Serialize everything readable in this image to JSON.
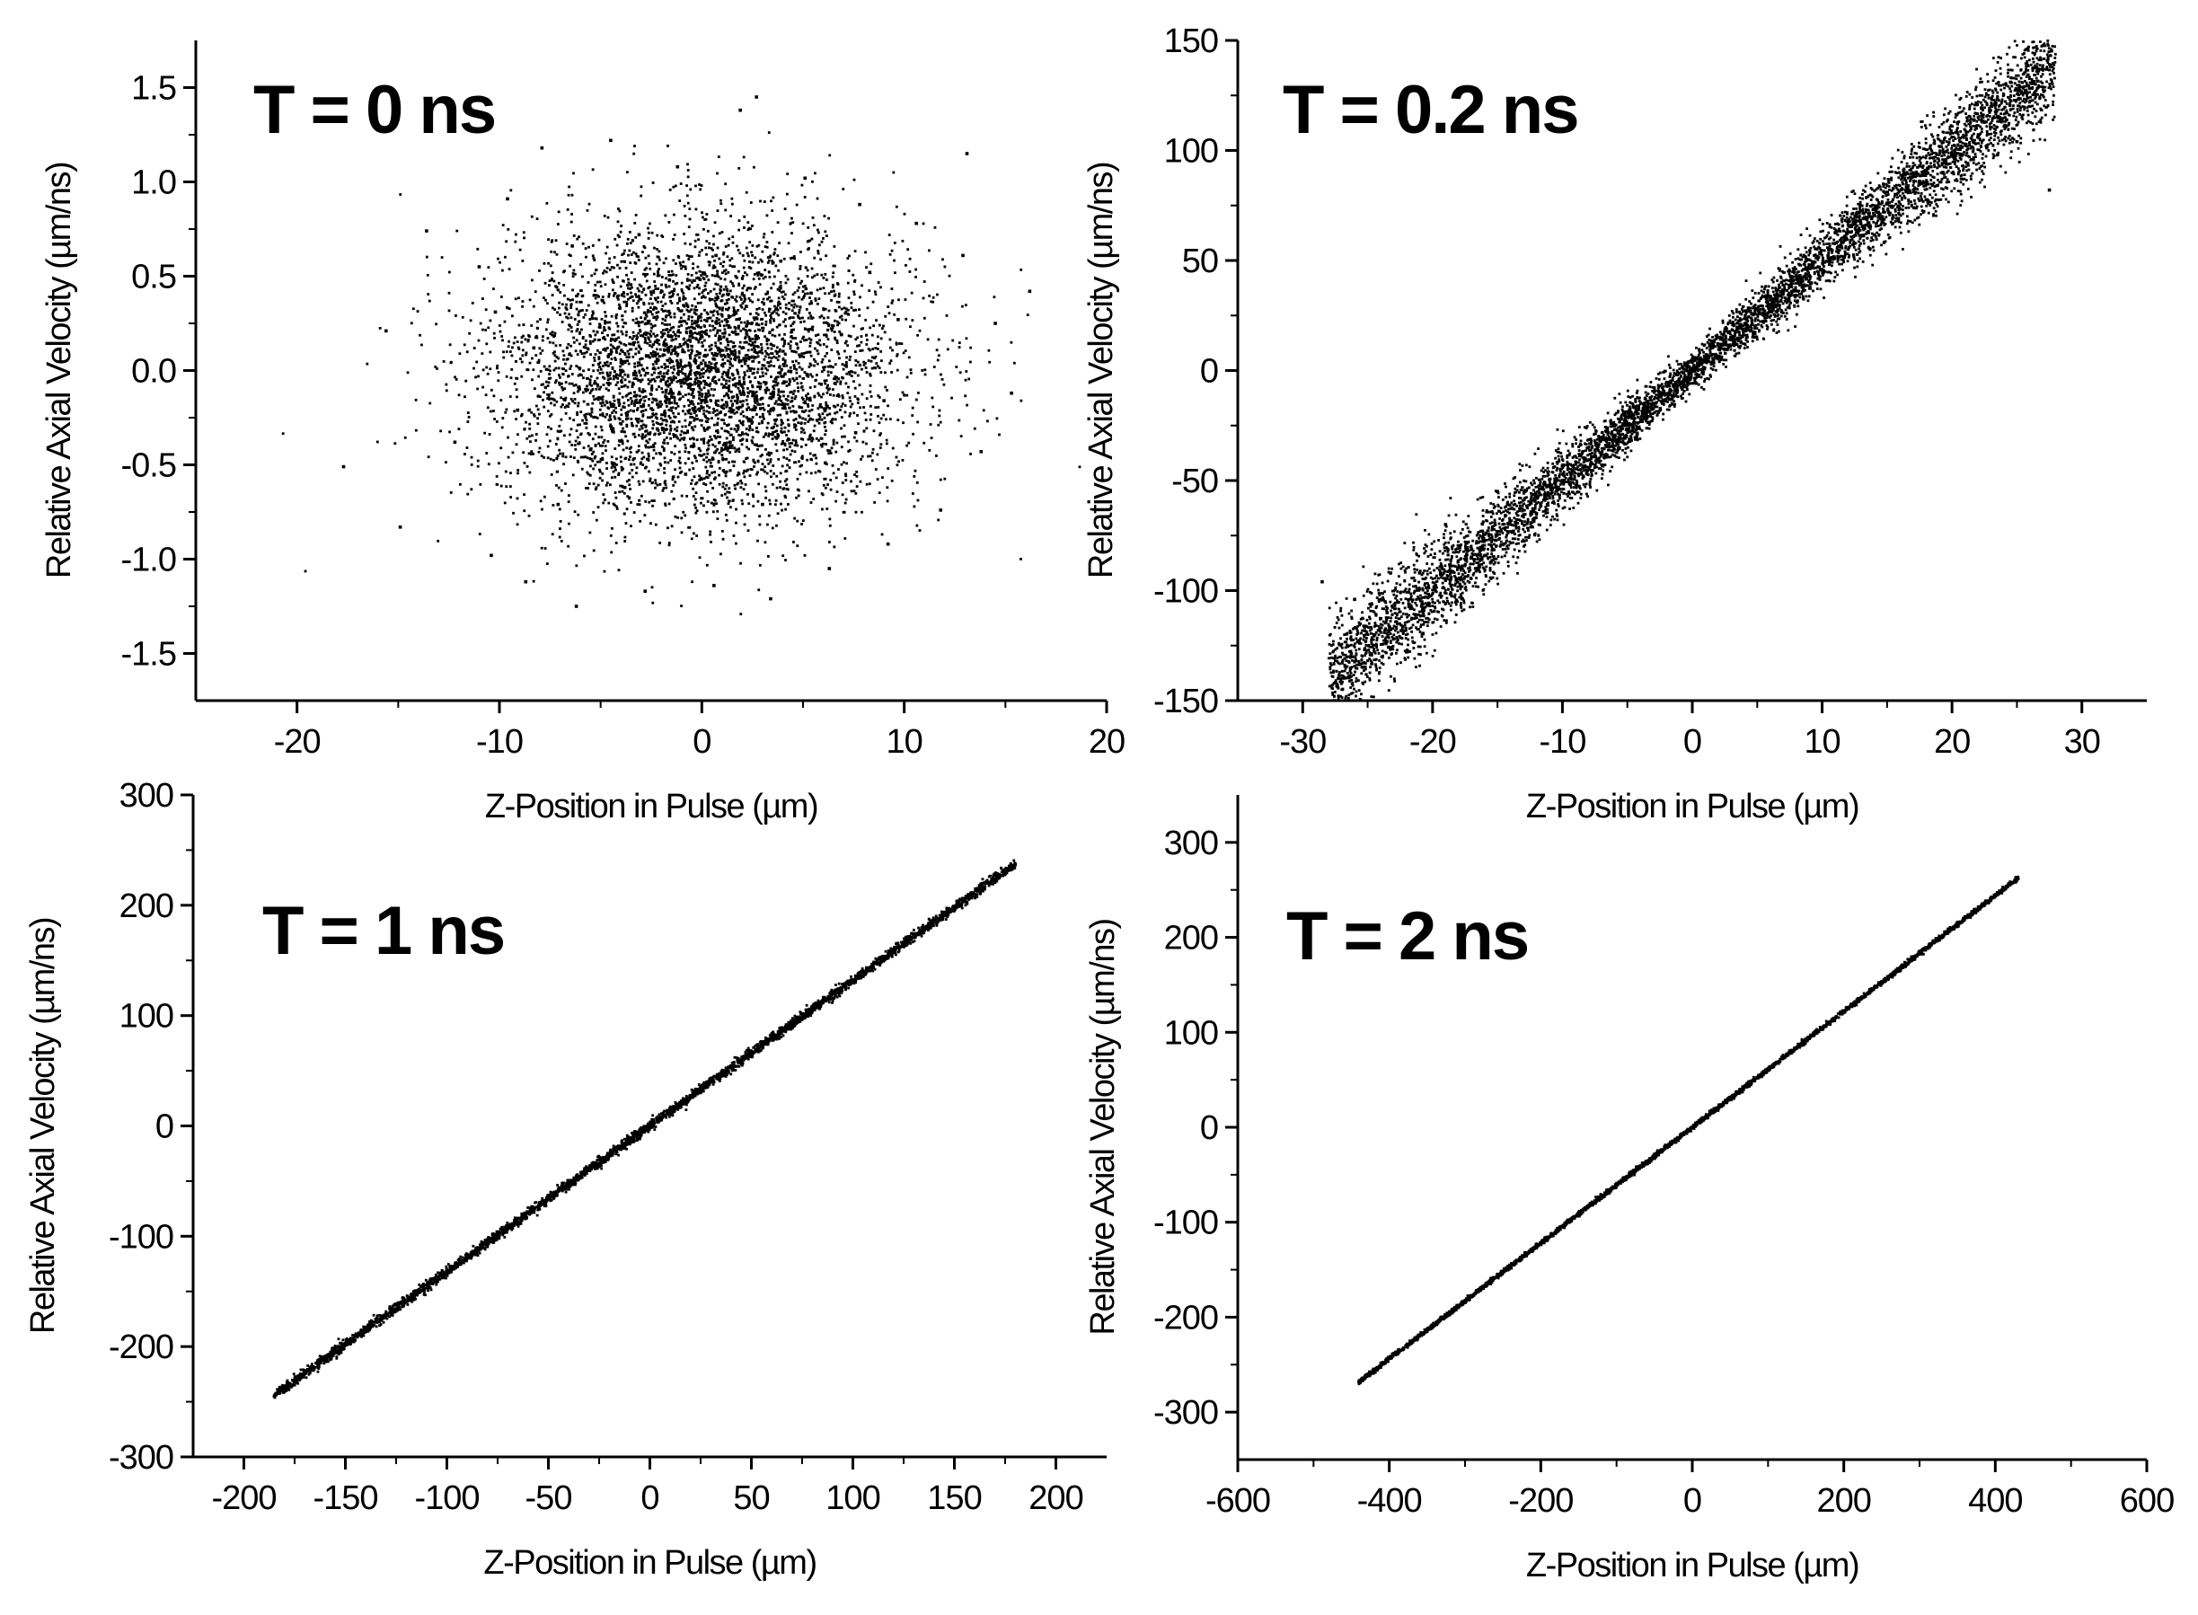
{
  "chart_data": [
    {
      "type": "scatter",
      "title": "T = 0 ns",
      "xlabel": "Z-Position in Pulse (µm)",
      "ylabel": "Relative Axial Velocity (µm/ns)",
      "xlim": [
        -25,
        20
      ],
      "ylim": [
        -1.75,
        1.75
      ],
      "xticks": [
        "-20",
        "-10",
        "0",
        "10",
        "20"
      ],
      "yticks": [
        "-1.5",
        "-1.0",
        "-0.5",
        "0.0",
        "0.5",
        "1.0",
        "1.5"
      ],
      "grid": false,
      "series": [
        {
          "points": [
            [
              -15.6,
              0.21
            ],
            [
              -14.9,
              -0.83
            ],
            [
              -17.7,
              -0.51
            ],
            [
              -13.6,
              0.74
            ],
            [
              -12.2,
              -0.38
            ],
            [
              -11.0,
              0.55
            ],
            [
              -10.4,
              -0.98
            ],
            [
              -9.6,
              0.91
            ],
            [
              -8.7,
              -1.12
            ],
            [
              -7.9,
              1.18
            ],
            [
              -6.2,
              -1.25
            ],
            [
              -4.5,
              1.22
            ],
            [
              -2.8,
              -1.17
            ],
            [
              -1.2,
              1.08
            ],
            [
              0.6,
              -1.14
            ],
            [
              1.9,
              1.38
            ],
            [
              2.7,
              1.45
            ],
            [
              3.4,
              -1.21
            ],
            [
              5.1,
              1.02
            ],
            [
              6.3,
              -1.05
            ],
            [
              7.8,
              0.88
            ],
            [
              9.2,
              -0.92
            ],
            [
              10.6,
              0.78
            ],
            [
              11.8,
              -0.74
            ],
            [
              12.9,
              0.61
            ],
            [
              13.8,
              -0.43
            ],
            [
              14.5,
              0.25
            ],
            [
              15.3,
              -0.12
            ],
            [
              16.2,
              0.42
            ],
            [
              13.1,
              1.15
            ],
            [
              -7.1,
              -0.71
            ],
            [
              -6.4,
              0.66
            ],
            [
              -5.5,
              -0.42
            ],
            [
              -4.9,
              0.37
            ],
            [
              -3.8,
              -0.62
            ],
            [
              -3.1,
              0.72
            ],
            [
              -2.2,
              -0.31
            ],
            [
              -1.6,
              0.48
            ],
            [
              -0.8,
              -0.55
            ],
            [
              -0.1,
              0.09
            ],
            [
              0.7,
              0.61
            ],
            [
              1.4,
              -0.38
            ],
            [
              2.2,
              0.34
            ],
            [
              3.0,
              -0.71
            ],
            [
              3.9,
              0.58
            ],
            [
              4.6,
              -0.22
            ],
            [
              5.4,
              0.41
            ],
            [
              6.1,
              -0.49
            ],
            [
              6.9,
              0.19
            ],
            [
              7.6,
              -0.33
            ],
            [
              8.3,
              0.52
            ],
            [
              9.0,
              -0.16
            ],
            [
              9.7,
              0.27
            ],
            [
              -8.3,
              0.12
            ],
            [
              -9.1,
              -0.21
            ],
            [
              -10.2,
              0.31
            ]
          ]
        }
      ],
      "scatter_count": 5000,
      "scatter_mean": [
        0,
        0
      ],
      "scatter_sd": [
        5,
        0.38
      ]
    },
    {
      "type": "scatter",
      "title": "T = 0.2 ns",
      "xlabel": "Z-Position in Pulse (µm)",
      "ylabel": "Relative Axial Velocity (µm/ns)",
      "xlim": [
        -35,
        35
      ],
      "ylim": [
        -150,
        150
      ],
      "xticks": [
        "-30",
        "-20",
        "-10",
        "0",
        "10",
        "20",
        "30"
      ],
      "yticks": [
        "-150",
        "-100",
        "-50",
        "0",
        "50",
        "100",
        "150"
      ],
      "grid": false,
      "series": [
        {
          "points": [
            [
              -28.5,
              -96
            ],
            [
              -26.0,
              -104
            ],
            [
              -23.5,
              -110
            ],
            [
              -21.0,
              -92
            ],
            [
              -19.0,
              -70
            ],
            [
              -17.0,
              -85
            ],
            [
              -15.0,
              -55
            ],
            [
              -12.0,
              -65
            ],
            [
              -10.0,
              -50
            ],
            [
              -6.0,
              -32
            ],
            [
              -3.0,
              -15
            ],
            [
              0.0,
              0
            ],
            [
              3.0,
              14
            ],
            [
              6.0,
              30
            ],
            [
              9.0,
              48
            ],
            [
              12.0,
              63
            ],
            [
              15.0,
              76
            ],
            [
              17.5,
              86
            ],
            [
              19.5,
              95
            ],
            [
              22.0,
              106
            ],
            [
              23.5,
              98
            ],
            [
              25.0,
              104
            ],
            [
              27.5,
              82
            ],
            [
              24.5,
              131
            ]
          ]
        }
      ],
      "scatter_count": 6000,
      "scatter_z_range": [
        -28,
        28
      ],
      "scatter_slope": 5.0
    },
    {
      "type": "scatter",
      "title": "T = 1 ns",
      "xlabel": "Z-Position in Pulse (µm)",
      "ylabel": "Relative Axial Velocity (µm/ns)",
      "xlim": [
        -225,
        225
      ],
      "ylim": [
        -300,
        300
      ],
      "xticks": [
        "-200",
        "-150",
        "-100",
        "-50",
        "0",
        "50",
        "100",
        "150",
        "200"
      ],
      "yticks": [
        "-300",
        "-200",
        "-100",
        "0",
        "100",
        "200",
        "300"
      ],
      "grid": false,
      "series": [
        {
          "points": [
            [
              -185,
              -245
            ],
            [
              -150,
              -198
            ],
            [
              -100,
              -132
            ],
            [
              -50,
              -66
            ],
            [
              0,
              0
            ],
            [
              50,
              66
            ],
            [
              100,
              132
            ],
            [
              150,
              197
            ],
            [
              180,
              237
            ]
          ]
        }
      ],
      "scatter_count": 3500,
      "scatter_z_range": [
        -185,
        180
      ],
      "scatter_slope": 1.32
    },
    {
      "type": "scatter",
      "title": "T = 2 ns",
      "xlabel": "Z-Position in Pulse (µm)",
      "ylabel": "Relative Axial Velocity (µm/ns)",
      "xlim": [
        -600,
        600
      ],
      "ylim": [
        -350,
        350
      ],
      "xticks": [
        "-600",
        "-400",
        "-200",
        "0",
        "200",
        "400",
        "600"
      ],
      "yticks": [
        "-300",
        "-200",
        "-100",
        "0",
        "100",
        "200",
        "300"
      ],
      "grid": false,
      "series": [
        {
          "points": [
            [
              -440,
              -268
            ],
            [
              -300,
              -183
            ],
            [
              -200,
              -122
            ],
            [
              -100,
              -61
            ],
            [
              0,
              0
            ],
            [
              100,
              61
            ],
            [
              200,
              122
            ],
            [
              300,
              183
            ],
            [
              430,
              262
            ]
          ]
        }
      ],
      "scatter_count": 3000,
      "scatter_z_range": [
        -440,
        430
      ],
      "scatter_slope": 0.61
    }
  ]
}
